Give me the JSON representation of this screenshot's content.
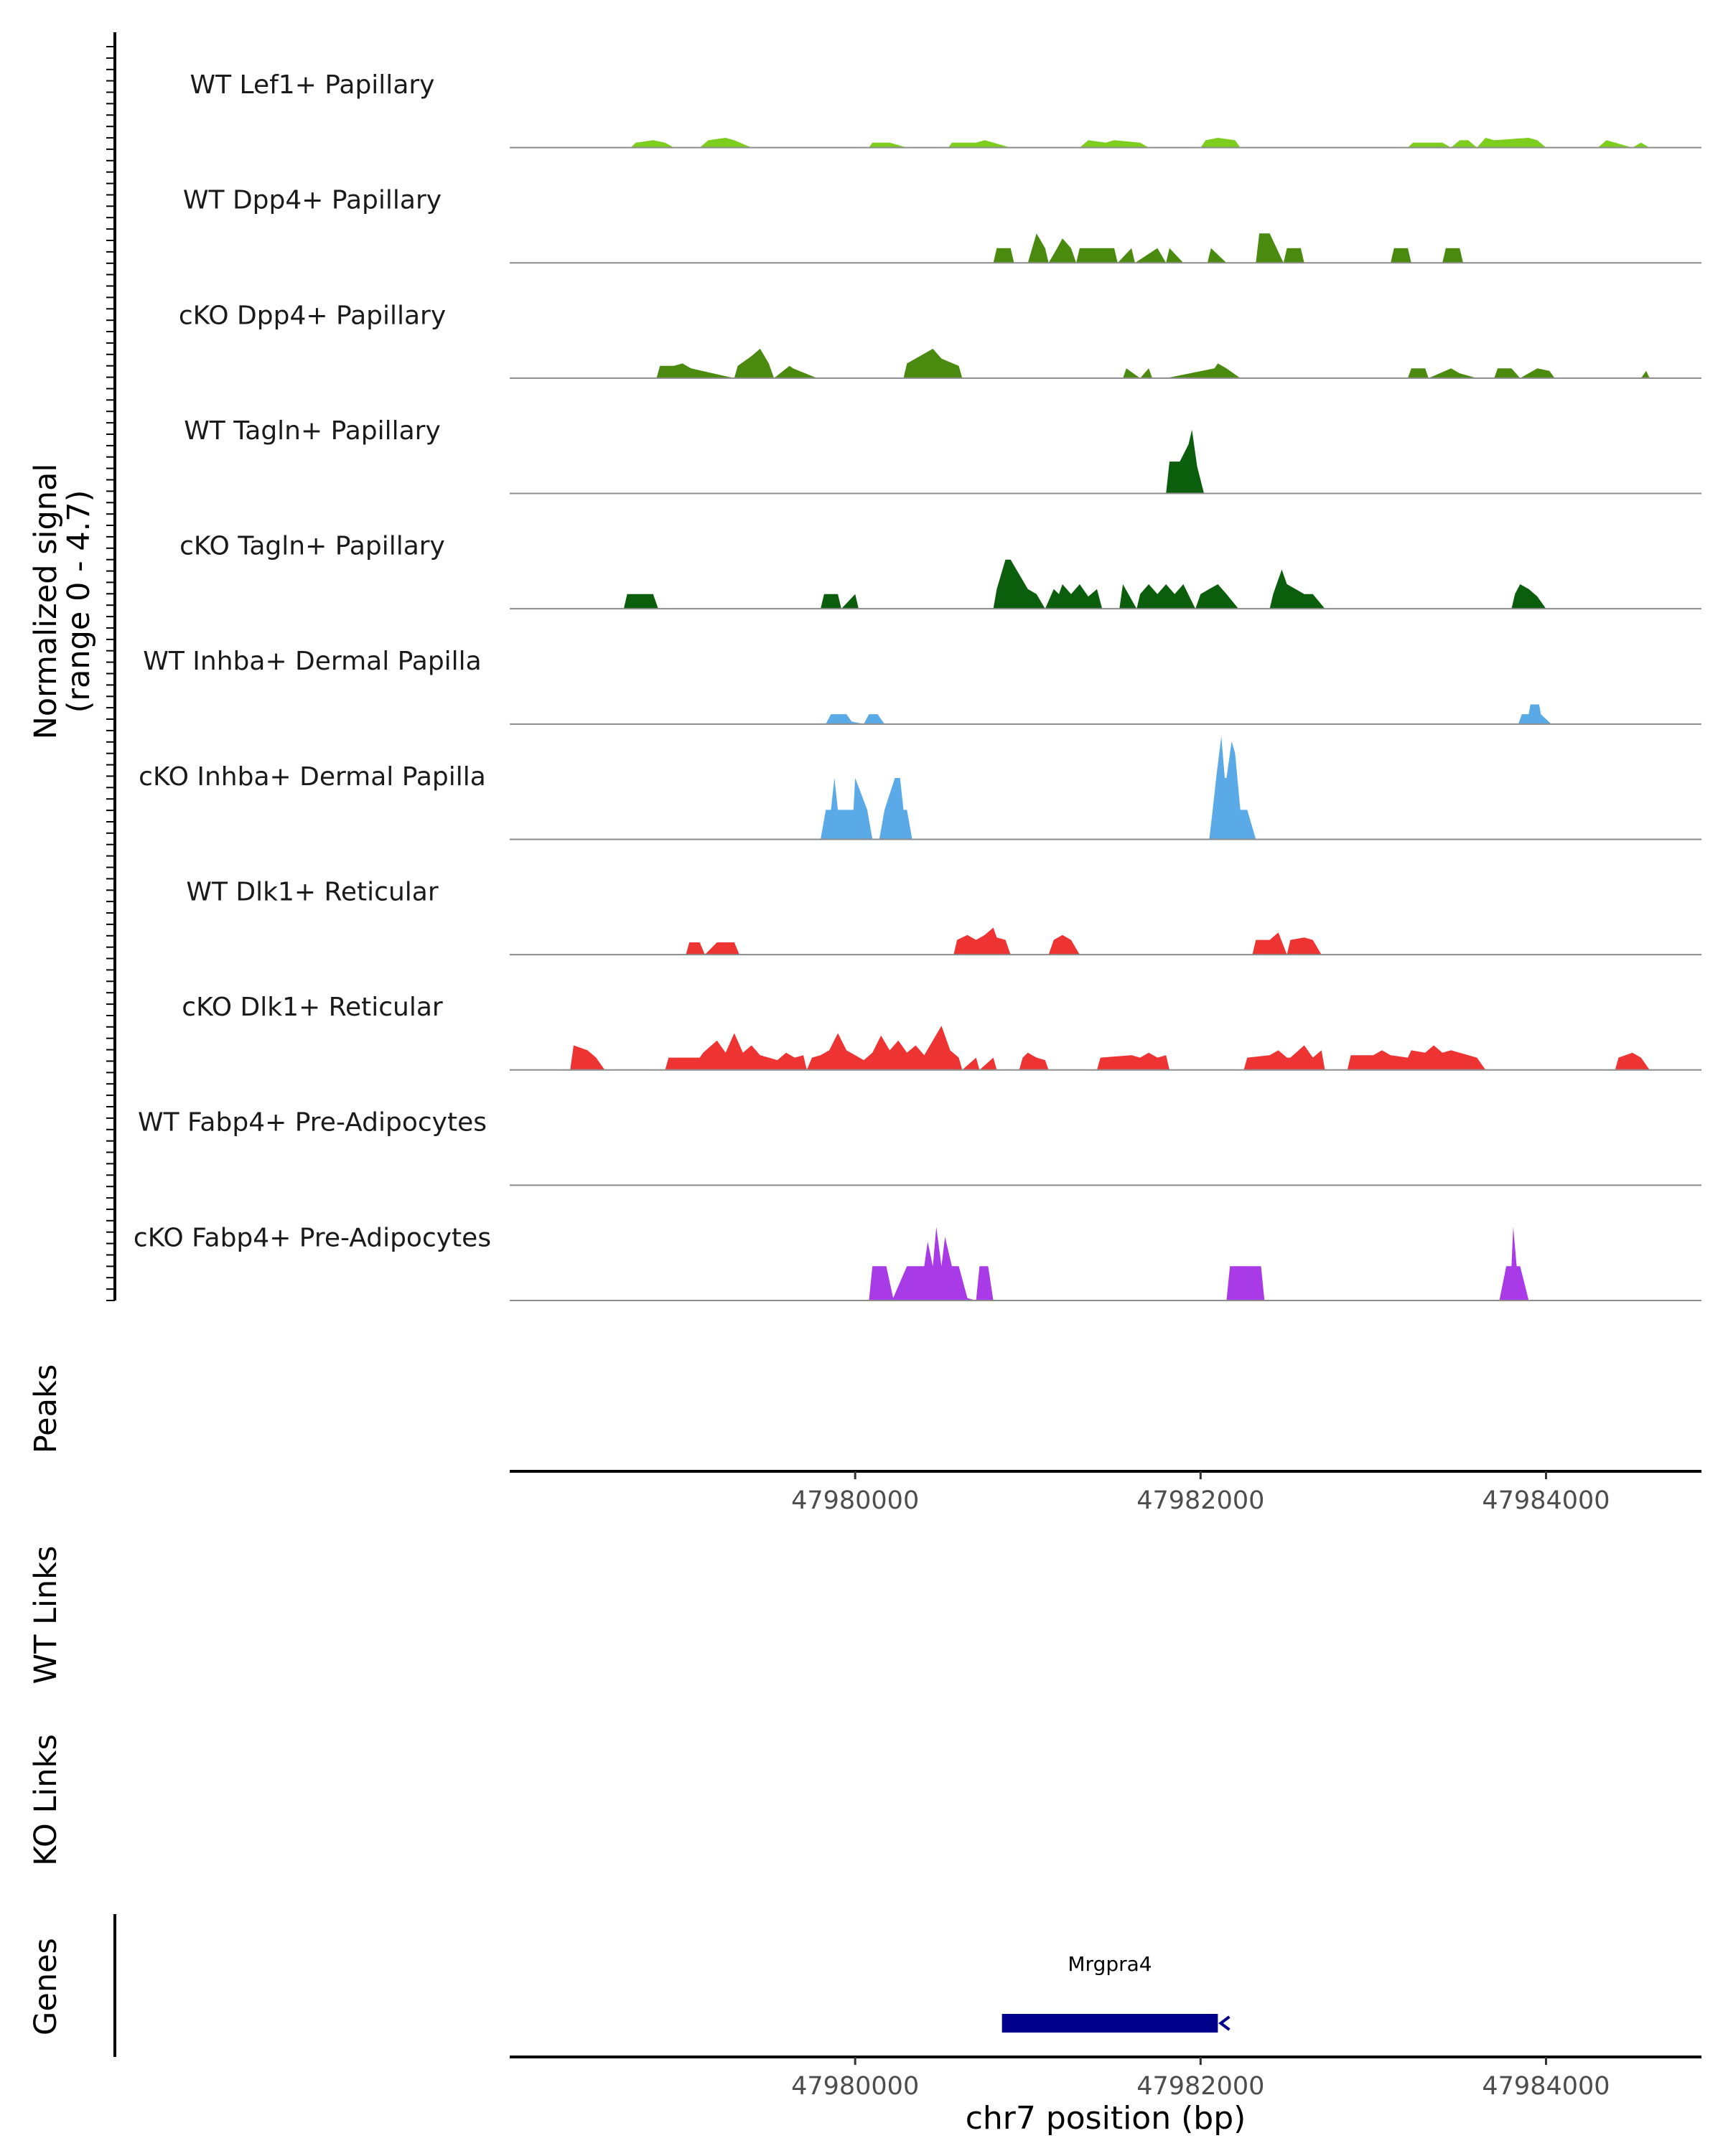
{
  "chart_data": {
    "type": "area",
    "title": "",
    "xlabel": "chr7 position (bp)",
    "ylabel": "Normalized signal",
    "ylabel_range": "(range 0 - 4.7)",
    "ylim": [
      0,
      4.7
    ],
    "xlim": [
      47978000,
      47984900
    ],
    "x_ticks": [
      47980000,
      47982000,
      47984000
    ],
    "x_tick_labels": [
      "47980000",
      "47982000",
      "47984000"
    ],
    "tracks": [
      {
        "name": "WT Lef1+ Papillary",
        "color": "#7CCD1E",
        "x": [
          47978700,
          47978730,
          47978830,
          47978900,
          47978950,
          47979100,
          47979150,
          47979250,
          47979300,
          47979400,
          47980080,
          47980100,
          47980200,
          47980300,
          47980540,
          47980560,
          47980700,
          47980750,
          47980800,
          47980900,
          47981300,
          47981350,
          47981450,
          47981500,
          47981650,
          47981700,
          47982000,
          47982030,
          47982100,
          47982200,
          47982230,
          47983200,
          47983230,
          47983400,
          47983450,
          47983500,
          47983550,
          47983600,
          47983650,
          47983700,
          47983900,
          47983950,
          47984000,
          47984300,
          47984350,
          47984400,
          47984500,
          47984550,
          47984600
        ],
        "y": [
          0,
          0.2,
          0.3,
          0.2,
          0,
          0,
          0.3,
          0.4,
          0.3,
          0,
          0,
          0.2,
          0.2,
          0,
          0,
          0.2,
          0.2,
          0.3,
          0.2,
          0,
          0,
          0.3,
          0.2,
          0.3,
          0.2,
          0,
          0,
          0.3,
          0.4,
          0.3,
          0,
          0,
          0.2,
          0.2,
          0,
          0.3,
          0.3,
          0,
          0.4,
          0.3,
          0.4,
          0.3,
          0,
          0,
          0.3,
          0.2,
          0,
          0.2,
          0
        ]
      },
      {
        "name": "WT Dpp4+ Papillary",
        "color": "#4A8A0E",
        "x": [
          47980800,
          47980820,
          47980900,
          47980920,
          47981000,
          47981050,
          47981100,
          47981120,
          47981170,
          47981200,
          47981250,
          47981280,
          47981300,
          47981500,
          47981520,
          47981600,
          47981620,
          47981750,
          47981800,
          47981820,
          47981900,
          47982040,
          47982060,
          47982150,
          47982320,
          47982340,
          47982400,
          47982480,
          47982500,
          47982580,
          47982600,
          47982700,
          47983100,
          47983120,
          47983200,
          47983220,
          47983400,
          47983420,
          47983500,
          47983520
        ],
        "y": [
          0,
          0.6,
          0.6,
          0,
          0,
          1.2,
          0.6,
          0,
          0.6,
          1.0,
          0.6,
          0,
          0.6,
          0.6,
          0,
          0.6,
          0,
          0.6,
          0,
          0.6,
          0,
          0,
          0.6,
          0,
          0,
          1.2,
          1.2,
          0,
          0.6,
          0.6,
          0,
          0,
          0,
          0.6,
          0.6,
          0,
          0,
          0.6,
          0.6,
          0
        ]
      },
      {
        "name": "cKO Dpp4+ Papillary",
        "color": "#4A8A0E",
        "x": [
          47978850,
          47978870,
          47978950,
          47979000,
          47979050,
          47979300,
          47979320,
          47979400,
          47979450,
          47979500,
          47979530,
          47979620,
          47979640,
          47979780,
          47980280,
          47980300,
          47980400,
          47980450,
          47980500,
          47980600,
          47980620,
          47981550,
          47981570,
          47981650,
          47981700,
          47981720,
          47981800,
          47982080,
          47982100,
          47982150,
          47982230,
          47982250,
          47983200,
          47983220,
          47983300,
          47983320,
          47983450,
          47983500,
          47983600,
          47983700,
          47983720,
          47983800,
          47983850,
          47983950,
          47984020,
          47984050,
          47984550,
          47984580,
          47984600
        ],
        "y": [
          0,
          0.5,
          0.5,
          0.6,
          0.4,
          0,
          0.5,
          0.9,
          1.2,
          0.6,
          0,
          0.5,
          0.4,
          0,
          0,
          0.6,
          1.0,
          1.2,
          0.8,
          0.5,
          0,
          0,
          0.4,
          0,
          0.4,
          0,
          0,
          0.4,
          0.6,
          0.4,
          0,
          0,
          0,
          0.4,
          0.4,
          0,
          0.4,
          0.2,
          0,
          0,
          0.4,
          0.4,
          0,
          0.4,
          0.3,
          0,
          0,
          0.3,
          0
        ]
      },
      {
        "name": "WT Tagln+ Papillary",
        "color": "#0B5E0B",
        "x": [
          47981800,
          47981820,
          47981880,
          47981930,
          47981950,
          47981980,
          47982020
        ],
        "y": [
          0,
          1.3,
          1.3,
          2.0,
          2.6,
          1.1,
          0
        ]
      },
      {
        "name": "cKO Tagln+ Papillary",
        "color": "#0B5E0B",
        "x": [
          47978660,
          47978680,
          47978830,
          47978860,
          47979800,
          47979820,
          47979900,
          47979920,
          47980000,
          47980020,
          47980800,
          47980820,
          47980870,
          47980900,
          47980950,
          47981000,
          47981050,
          47981100,
          47981150,
          47981180,
          47981200,
          47981250,
          47981300,
          47981350,
          47981400,
          47981430,
          47981530,
          47981550,
          47981630,
          47981650,
          47981700,
          47981750,
          47981800,
          47981850,
          47981900,
          47981970,
          47982000,
          47982050,
          47982100,
          47982150,
          47982220,
          47982400,
          47982420,
          47982470,
          47982500,
          47982550,
          47982600,
          47982650,
          47982720,
          47983800,
          47983820,
          47983850,
          47983900,
          47983950,
          47984000
        ],
        "y": [
          0,
          0.6,
          0.6,
          0,
          0,
          0.6,
          0.6,
          0,
          0.6,
          0,
          0,
          0.8,
          2.0,
          2.0,
          1.4,
          0.8,
          0.6,
          0,
          0.8,
          0.6,
          1.0,
          0.6,
          1.0,
          0.5,
          0.8,
          0,
          0,
          1.0,
          0,
          0.6,
          1.0,
          0.6,
          1.0,
          0.6,
          1.0,
          0,
          0.6,
          0.8,
          1.0,
          0.6,
          0,
          0,
          0.6,
          1.6,
          1.0,
          0.8,
          0.6,
          0.6,
          0,
          0,
          0.6,
          1.0,
          0.8,
          0.5,
          0
        ]
      },
      {
        "name": "WT Inhba+ Dermal Papilla",
        "color": "#5AAAE8",
        "x": [
          47979830,
          47979860,
          47979950,
          47979980,
          47980050,
          47980080,
          47980130,
          47980170,
          47983840,
          47983860,
          47983900,
          47983910,
          47983960,
          47983970,
          47984030
        ],
        "y": [
          0,
          0.4,
          0.4,
          0.1,
          0,
          0.4,
          0.4,
          0,
          0,
          0.4,
          0.4,
          0.8,
          0.8,
          0.4,
          0
        ]
      },
      {
        "name": "cKO Inhba+ Dermal Papilla",
        "color": "#5AAAE8",
        "x": [
          47979800,
          47979830,
          47979860,
          47979880,
          47979900,
          47979990,
          47980000,
          47980070,
          47980100,
          47980140,
          47980170,
          47980230,
          47980260,
          47980280,
          47980300,
          47980330,
          47982050,
          47982070,
          47982090,
          47982120,
          47982140,
          47982150,
          47982170,
          47982180,
          47982200,
          47982230,
          47982270,
          47982320
        ],
        "y": [
          0,
          1.2,
          1.2,
          2.5,
          1.2,
          1.2,
          2.5,
          1.2,
          0,
          0,
          1.2,
          2.5,
          2.5,
          1.2,
          1.2,
          0,
          0,
          1.2,
          2.5,
          4.2,
          2.5,
          2.5,
          3.5,
          4.0,
          3.5,
          1.2,
          1.2,
          0
        ]
      },
      {
        "name": "WT Dlk1+ Reticular",
        "color": "#EE3333",
        "x": [
          47979020,
          47979040,
          47979100,
          47979130,
          47979200,
          47979230,
          47979300,
          47979330,
          47980570,
          47980590,
          47980650,
          47980700,
          47980750,
          47980800,
          47980820,
          47980870,
          47980900,
          47981120,
          47981150,
          47981200,
          47981250,
          47981300,
          47982300,
          47982320,
          47982400,
          47982450,
          47982500,
          47982520,
          47982600,
          47982650,
          47982700
        ],
        "y": [
          0,
          0.5,
          0.5,
          0,
          0.5,
          0.5,
          0.5,
          0,
          0,
          0.6,
          0.8,
          0.6,
          0.8,
          1.1,
          0.7,
          0.6,
          0,
          0,
          0.6,
          0.8,
          0.6,
          0,
          0,
          0.6,
          0.6,
          0.9,
          0,
          0.6,
          0.7,
          0.6,
          0
        ]
      },
      {
        "name": "cKO Dlk1+ Reticular",
        "color": "#EE3333",
        "x": [
          47978350,
          47978370,
          47978450,
          47978500,
          47978550,
          47978900,
          47978920,
          47979100,
          47979120,
          47979200,
          47979250,
          47979300,
          47979350,
          47979400,
          47979450,
          47979500,
          47979550,
          47979600,
          47979650,
          47979700,
          47979720,
          47979750,
          47979800,
          47979850,
          47979900,
          47979950,
          47980000,
          47980050,
          47980100,
          47980150,
          47980200,
          47980250,
          47980300,
          47980350,
          47980400,
          47980450,
          47980500,
          47980550,
          47980600,
          47980620,
          47980700,
          47980720,
          47980800,
          47980820,
          47980950,
          47980970,
          47981000,
          47981050,
          47981100,
          47981120,
          47981400,
          47981420,
          47981600,
          47981650,
          47981700,
          47981750,
          47981800,
          47981820,
          47982250,
          47982270,
          47982400,
          47982450,
          47982500,
          47982520,
          47982600,
          47982650,
          47982700,
          47982720,
          47982850,
          47982870,
          47983000,
          47983050,
          47983100,
          47983200,
          47983220,
          47983300,
          47983350,
          47983400,
          47983450,
          47983500,
          47983550,
          47983600,
          47983650,
          47984400,
          47984420,
          47984500,
          47984550,
          47984600
        ],
        "y": [
          0,
          1.0,
          0.8,
          0.5,
          0,
          0,
          0.5,
          0.5,
          0.7,
          1.2,
          0.7,
          1.5,
          0.7,
          1.0,
          0.6,
          0.5,
          0.4,
          0.7,
          0.5,
          0.6,
          0,
          0.5,
          0.6,
          0.8,
          1.5,
          0.8,
          0.6,
          0.4,
          0.7,
          1.4,
          0.8,
          1.2,
          0.7,
          1.0,
          0.6,
          1.2,
          1.8,
          0.8,
          0.5,
          0,
          0.5,
          0,
          0.5,
          0,
          0,
          0.5,
          0.7,
          0.5,
          0.4,
          0,
          0,
          0.5,
          0.6,
          0.5,
          0.7,
          0.5,
          0.6,
          0,
          0,
          0.5,
          0.6,
          0.8,
          0.5,
          0.5,
          1.0,
          0.5,
          0.8,
          0,
          0,
          0.6,
          0.6,
          0.8,
          0.6,
          0.5,
          0.8,
          0.7,
          1.0,
          0.7,
          0.8,
          0.7,
          0.6,
          0.5,
          0,
          0,
          0.5,
          0.7,
          0.5,
          0
        ]
      },
      {
        "name": "WT Fabp4+ Pre-Adipocytes",
        "color": "#A93AE8",
        "x": [
          47978000,
          47984900
        ],
        "y": [
          0,
          0
        ]
      },
      {
        "name": "cKO Fabp4+ Pre-Adipocytes",
        "color": "#A93AE8",
        "x": [
          47980080,
          47980100,
          47980180,
          47980220,
          47980300,
          47980400,
          47980420,
          47980450,
          47980470,
          47980500,
          47980520,
          47980560,
          47980600,
          47980650,
          47980700,
          47980720,
          47980770,
          47980800,
          47982150,
          47982170,
          47982350,
          47982370,
          47983730,
          47983770,
          47983800,
          47983810,
          47983830,
          47983850,
          47983900
        ],
        "y": [
          0,
          1.4,
          1.4,
          0.1,
          1.4,
          1.4,
          2.4,
          1.4,
          3.0,
          1.4,
          2.6,
          1.4,
          1.4,
          0.1,
          0,
          1.4,
          1.4,
          0,
          0,
          1.4,
          1.4,
          0,
          0,
          1.4,
          1.4,
          3.0,
          1.4,
          1.4,
          0
        ]
      }
    ],
    "section_labels": {
      "peaks": "Peaks",
      "wt_links": "WT Links",
      "ko_links": "KO Links",
      "genes": "Genes"
    },
    "genes": [
      {
        "name": "Mrgpra4",
        "start": 47980850,
        "end": 47982100,
        "strand": "-",
        "color": "#00008B"
      }
    ]
  }
}
